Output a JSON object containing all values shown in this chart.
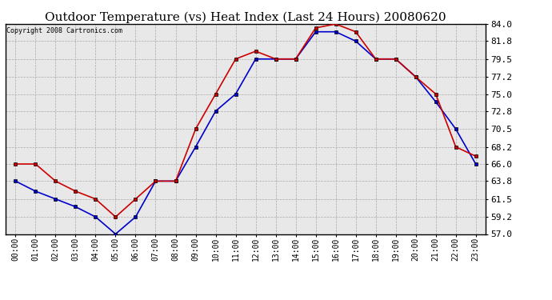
{
  "title": "Outdoor Temperature (vs) Heat Index (Last 24 Hours) 20080620",
  "copyright": "Copyright 2008 Cartronics.com",
  "hours": [
    "00:00",
    "01:00",
    "02:00",
    "03:00",
    "04:00",
    "05:00",
    "06:00",
    "07:00",
    "08:00",
    "09:00",
    "10:00",
    "11:00",
    "12:00",
    "13:00",
    "14:00",
    "15:00",
    "16:00",
    "17:00",
    "18:00",
    "19:00",
    "20:00",
    "21:00",
    "22:00",
    "23:00"
  ],
  "temp": [
    63.8,
    62.5,
    61.5,
    60.5,
    59.2,
    57.0,
    59.2,
    63.8,
    63.8,
    68.2,
    72.8,
    75.0,
    79.5,
    79.5,
    79.5,
    83.0,
    83.0,
    81.8,
    79.5,
    79.5,
    77.2,
    74.0,
    70.5,
    66.0
  ],
  "heat_index": [
    66.0,
    66.0,
    63.8,
    62.5,
    61.5,
    59.2,
    61.5,
    63.8,
    63.8,
    70.5,
    75.0,
    79.5,
    80.5,
    79.5,
    79.5,
    83.5,
    84.0,
    83.0,
    79.5,
    79.5,
    77.2,
    75.0,
    68.2,
    67.0
  ],
  "temp_color": "#0000cc",
  "heat_index_color": "#cc0000",
  "ylim_min": 57.0,
  "ylim_max": 84.0,
  "yticks": [
    57.0,
    59.2,
    61.5,
    63.8,
    66.0,
    68.2,
    70.5,
    72.8,
    75.0,
    77.2,
    79.5,
    81.8,
    84.0
  ],
  "bg_color": "#ffffff",
  "plot_bg_color": "#e8e8e8",
  "grid_color": "#aaaaaa",
  "title_fontsize": 11,
  "copyright_fontsize": 6,
  "tick_fontsize": 7,
  "ytick_fontsize": 8,
  "marker": "s",
  "markersize": 3,
  "linewidth": 1.2
}
